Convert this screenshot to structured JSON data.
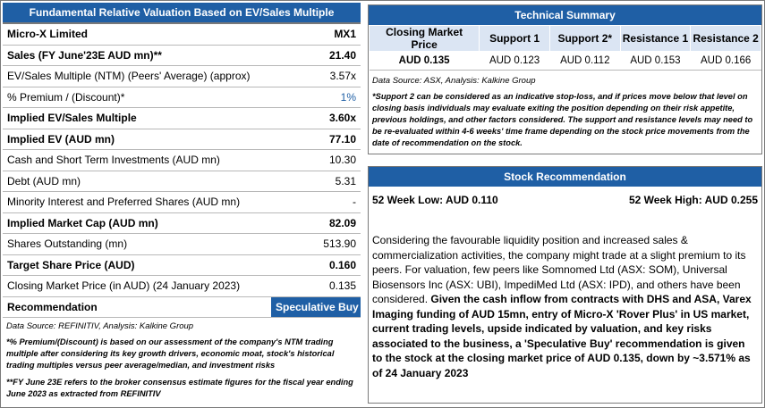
{
  "valuation": {
    "title": "Fundamental Relative Valuation Based on EV/Sales Multiple",
    "rows": [
      {
        "label": "Micro-X Limited",
        "value": "MX1"
      },
      {
        "label": "Sales (FY June'23E AUD mn)**",
        "value": "21.40"
      },
      {
        "label": "EV/Sales Multiple (NTM)  (Peers' Average) (approx)",
        "value": "3.57x"
      },
      {
        "label": "% Premium / (Discount)*",
        "value": "1%"
      },
      {
        "label": "Implied EV/Sales Multiple",
        "value": "3.60x"
      },
      {
        "label": "Implied EV (AUD mn)",
        "value": "77.10"
      },
      {
        "label": "Cash and Short Term Investments (AUD mn)",
        "value": "10.30"
      },
      {
        "label": "Debt (AUD mn)",
        "value": "5.31"
      },
      {
        "label": "Minority Interest and Preferred Shares (AUD mn)",
        "value": "-"
      },
      {
        "label": "Implied Market Cap (AUD mn)",
        "value": "82.09"
      },
      {
        "label": "Shares Outstanding (mn)",
        "value": "513.90"
      },
      {
        "label": "Target Share Price (AUD)",
        "value": "0.160"
      },
      {
        "label": "Closing Market Price (in AUD) (24 January 2023)",
        "value": "0.135"
      },
      {
        "label": "Recommendation",
        "value": "Speculative Buy"
      }
    ],
    "source": "Data Source: REFINITIV, Analysis: Kalkine Group",
    "note1": "*% Premium/(Discount) is based on our assessment of the company's NTM trading multiple after considering its key growth drivers, economic moat, stock's historical trading multiples versus peer average/median, and investment risks",
    "note2": "**FY June 23E refers to the broker consensus estimate figures for the fiscal year ending June 2023  as extracted from REFINITIV"
  },
  "technical": {
    "title": "Technical Summary",
    "headers": [
      "Closing Market Price",
      "Support 1",
      "Support 2*",
      "Resistance 1",
      "Resistance 2"
    ],
    "values": [
      "AUD 0.135",
      "AUD 0.123",
      "AUD 0.112",
      "AUD 0.153",
      "AUD 0.166"
    ],
    "source": "Data Source: ASX, Analysis: Kalkine Group",
    "note": "*Support 2 can be considered as an indicative stop-loss, and if prices move below that level on closing basis individuals may evaluate exiting the position depending on their risk appetite, previous holdings, and other factors considered. The support and resistance levels may need to be re-evaluated within 4-6 weeks' time frame depending on the stock price movements from the date of recommendation on the stock."
  },
  "recommendation": {
    "title": "Stock Recommendation",
    "week_low": "52 Week Low: AUD 0.110",
    "week_high": "52 Week High: AUD 0.255",
    "text_normal": "Considering the favourable liquidity position and increased sales & commercialization activities, the company might trade at a slight premium to its peers. For valuation, few peers like Somnomed Ltd (ASX: SOM), Universal Biosensors Inc (ASX: UBI), ImpediMed Ltd (ASX: IPD), and others have been considered. ",
    "text_bold": "Given the cash inflow from contracts with DHS and ASA, Varex Imaging funding of AUD 15mn, entry of Micro-X 'Rover Plus' in US market, current trading levels, upside indicated by valuation, and key risks associated to the business, a 'Speculative Buy' recommendation is given to the stock at the closing market price of AUD 0.135, down by ~3.571% as of 24 January 2023"
  }
}
